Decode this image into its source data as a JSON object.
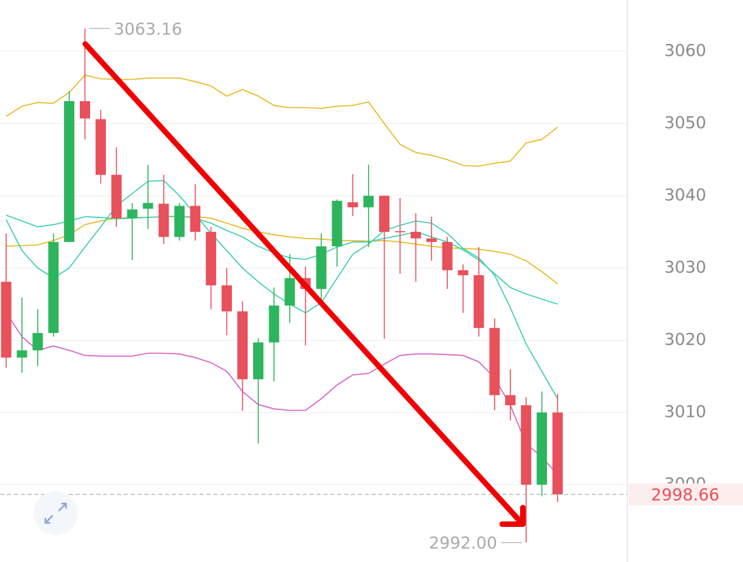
{
  "chart_data": {
    "type": "candlestick",
    "up_color": "#2db55d",
    "down_color": "#e8505b",
    "ylim": [
      2989.3,
      3067.1
    ],
    "yticks": [
      3000,
      3010,
      3020,
      3030,
      3040,
      3050,
      3060
    ],
    "grid": true,
    "open": [
      3028.1,
      3017.6,
      3018.6,
      3021.0,
      3033.6,
      3053.1,
      3050.6,
      3042.9,
      3036.9,
      3038.2,
      3038.9,
      3034.3,
      3038.6,
      3035.0,
      3027.6,
      3024.0,
      3014.6,
      3019.7,
      3024.8,
      3028.6,
      3027.1,
      3033.0,
      3039.1,
      3038.4,
      3040.0,
      3035.1,
      3035.0,
      3034.1,
      3033.6,
      3029.7,
      3029.0,
      3021.7,
      3012.4,
      3011.0,
      3000.0,
      3010.0
    ],
    "high": [
      3034.8,
      3025.9,
      3024.3,
      3034.8,
      3054.5,
      3063.16,
      3051.9,
      3046.7,
      3039.0,
      3044.3,
      3042.9,
      3039.0,
      3041.6,
      3035.7,
      3030.0,
      3025.4,
      3020.3,
      3027.3,
      3031.9,
      3030.2,
      3034.8,
      3039.5,
      3043.0,
      3044.3,
      3040.0,
      3039.7,
      3037.6,
      3037.1,
      3034.3,
      3030.5,
      3032.9,
      3023.0,
      3016.0,
      3012.1,
      3012.9,
      3012.6
    ],
    "low": [
      3016.2,
      3015.5,
      3016.4,
      3020.5,
      3033.6,
      3047.8,
      3041.7,
      3035.7,
      3031.1,
      3035.4,
      3033.3,
      3033.8,
      3033.8,
      3024.3,
      3020.7,
      3010.2,
      3005.7,
      3014.3,
      3022.4,
      3019.3,
      3025.0,
      3030.2,
      3037.2,
      3032.9,
      3020.2,
      3029.2,
      3028.1,
      3031.0,
      3027.1,
      3023.8,
      3020.5,
      3010.3,
      3008.9,
      2992.0,
      2998.4,
      2997.6
    ],
    "close": [
      3017.6,
      3018.6,
      3021.0,
      3033.6,
      3053.1,
      3050.7,
      3042.9,
      3036.9,
      3038.1,
      3039.0,
      3034.3,
      3038.6,
      3035.0,
      3027.6,
      3024.0,
      3014.6,
      3019.7,
      3024.8,
      3028.6,
      3027.1,
      3033.0,
      3039.3,
      3038.4,
      3040.0,
      3035.0,
      3035.0,
      3034.1,
      3033.6,
      3029.7,
      3029.0,
      3021.7,
      3012.4,
      3011.0,
      3000.0,
      3010.0,
      2998.66
    ],
    "lines": [
      {
        "color": "#e8b923",
        "values": [
          3051.0,
          3052.4,
          3052.9,
          3052.8,
          3054.3,
          3056.7,
          3056.2,
          3056.1,
          3056.1,
          3056.3,
          3056.3,
          3056.3,
          3055.8,
          3055.2,
          3053.8,
          3054.7,
          3053.8,
          3052.5,
          3052.2,
          3052.2,
          3052.1,
          3052.4,
          3052.5,
          3053.0,
          3050.0,
          3047.1,
          3046.0,
          3045.6,
          3045.0,
          3044.2,
          3044.1,
          3044.5,
          3044.8,
          3047.3,
          3047.8,
          3049.5
        ]
      },
      {
        "color": "#e8b923",
        "values": [
          3033.0,
          3033.1,
          3033.2,
          3033.8,
          3034.6,
          3036.0,
          3036.5,
          3036.9,
          3037.0,
          3037.0,
          3037.1,
          3037.1,
          3037.1,
          3036.9,
          3036.2,
          3035.5,
          3035.0,
          3034.6,
          3034.3,
          3034.1,
          3034.0,
          3033.8,
          3033.8,
          3033.7,
          3033.8,
          3033.6,
          3033.3,
          3033.0,
          3032.8,
          3032.7,
          3032.6,
          3032.3,
          3031.9,
          3031.0,
          3029.5,
          3027.8
        ]
      },
      {
        "color": "#3fcfb0",
        "values": [
          3037.3,
          3036.5,
          3035.7,
          3036.0,
          3036.5,
          3037.1,
          3037.0,
          3036.8,
          3036.9,
          3037.0,
          3037.1,
          3037.2,
          3036.9,
          3036.2,
          3035.2,
          3034.3,
          3033.0,
          3032.1,
          3031.4,
          3031.2,
          3031.9,
          3032.9,
          3033.6,
          3033.6,
          3034.1,
          3034.5,
          3035.0,
          3034.3,
          3033.6,
          3032.5,
          3031.1,
          3029.2,
          3027.3,
          3026.4,
          3025.7,
          3025.0
        ]
      },
      {
        "color": "#3fcfb0",
        "values": [
          3036.7,
          3032.4,
          3030.0,
          3028.6,
          3030.0,
          3032.9,
          3035.7,
          3038.6,
          3040.3,
          3042.0,
          3042.1,
          3040.0,
          3037.4,
          3034.8,
          3032.4,
          3030.0,
          3028.1,
          3026.4,
          3025.0,
          3023.8,
          3025.2,
          3028.6,
          3031.9,
          3033.3,
          3035.2,
          3035.9,
          3036.5,
          3036.2,
          3034.8,
          3032.7,
          3031.4,
          3029.0,
          3024.5,
          3019.5,
          3015.7,
          3011.9
        ]
      },
      {
        "color": "#d860c8",
        "values": [
          3023.8,
          3020.5,
          3018.6,
          3019.2,
          3018.6,
          3017.9,
          3017.8,
          3017.8,
          3017.8,
          3018.2,
          3018.2,
          3018.1,
          3017.6,
          3016.9,
          3015.7,
          3012.9,
          3011.1,
          3010.5,
          3010.3,
          3010.3,
          3011.9,
          3013.8,
          3015.2,
          3015.4,
          3016.7,
          3017.9,
          3018.1,
          3018.1,
          3018.0,
          3017.9,
          3017.0,
          3014.8,
          3011.0,
          3005.7,
          3003.8,
          3001.4
        ]
      }
    ],
    "high_label": 3063.16,
    "low_label": {
      "value": 2992,
      "label": "2992.00"
    },
    "last_price": 2998.66
  }
}
